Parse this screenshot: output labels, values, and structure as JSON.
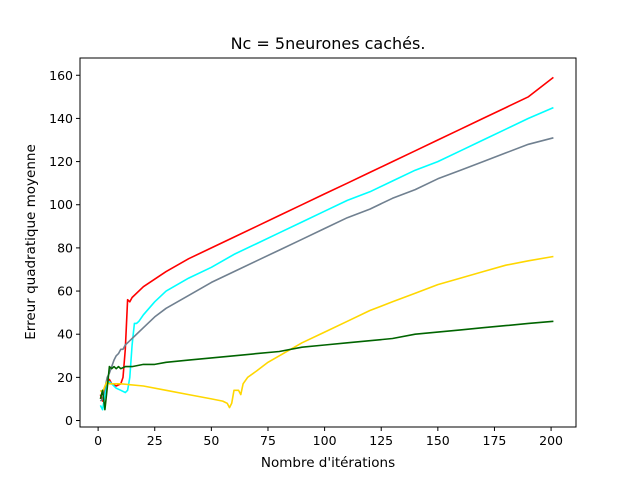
{
  "chart_data": {
    "type": "line",
    "title": "Nc = 5neurones cachés.",
    "xlabel": "Nombre d'itérations",
    "ylabel": "Erreur quadratique moyenne",
    "xlim": [
      -8,
      211
    ],
    "ylim": [
      -3,
      168
    ],
    "xticks": [
      0,
      25,
      50,
      75,
      100,
      125,
      150,
      175,
      200
    ],
    "yticks": [
      0,
      20,
      40,
      60,
      80,
      100,
      120,
      140,
      160
    ],
    "grid": false,
    "series": [
      {
        "color": "#ff0000",
        "points": [
          [
            1,
            12
          ],
          [
            2,
            9
          ],
          [
            3,
            14
          ],
          [
            4,
            17
          ],
          [
            5,
            19
          ],
          [
            6,
            17
          ],
          [
            8,
            16
          ],
          [
            10,
            17
          ],
          [
            11,
            20
          ],
          [
            12,
            33
          ],
          [
            13,
            56
          ],
          [
            14,
            55
          ],
          [
            15,
            57
          ],
          [
            20,
            62
          ],
          [
            30,
            69
          ],
          [
            40,
            75
          ],
          [
            50,
            80
          ],
          [
            60,
            85
          ],
          [
            70,
            90
          ],
          [
            80,
            95
          ],
          [
            90,
            100
          ],
          [
            100,
            105
          ],
          [
            110,
            110
          ],
          [
            120,
            115
          ],
          [
            130,
            120
          ],
          [
            140,
            125
          ],
          [
            150,
            130
          ],
          [
            160,
            135
          ],
          [
            170,
            140
          ],
          [
            180,
            145
          ],
          [
            190,
            150
          ],
          [
            201,
            159
          ]
        ]
      },
      {
        "color": "#00ffff",
        "points": [
          [
            1,
            7
          ],
          [
            2,
            5
          ],
          [
            3,
            12
          ],
          [
            4,
            17
          ],
          [
            5,
            18
          ],
          [
            6,
            17
          ],
          [
            8,
            15
          ],
          [
            10,
            14
          ],
          [
            12,
            13
          ],
          [
            13,
            14
          ],
          [
            14,
            20
          ],
          [
            15,
            35
          ],
          [
            16,
            45
          ],
          [
            17,
            45
          ],
          [
            18,
            46
          ],
          [
            20,
            49
          ],
          [
            25,
            55
          ],
          [
            30,
            60
          ],
          [
            40,
            66
          ],
          [
            50,
            71
          ],
          [
            60,
            77
          ],
          [
            70,
            82
          ],
          [
            80,
            87
          ],
          [
            90,
            92
          ],
          [
            100,
            97
          ],
          [
            110,
            102
          ],
          [
            120,
            106
          ],
          [
            130,
            111
          ],
          [
            140,
            116
          ],
          [
            150,
            120
          ],
          [
            160,
            125
          ],
          [
            170,
            130
          ],
          [
            180,
            135
          ],
          [
            190,
            140
          ],
          [
            201,
            145
          ]
        ]
      },
      {
        "color": "#708090",
        "points": [
          [
            1,
            9
          ],
          [
            2,
            10
          ],
          [
            3,
            15
          ],
          [
            4,
            20
          ],
          [
            5,
            22
          ],
          [
            6,
            25
          ],
          [
            7,
            28
          ],
          [
            8,
            30
          ],
          [
            9,
            31
          ],
          [
            10,
            33
          ],
          [
            11,
            33
          ],
          [
            12,
            35
          ],
          [
            13,
            36
          ],
          [
            14,
            37
          ],
          [
            15,
            38
          ],
          [
            20,
            43
          ],
          [
            25,
            48
          ],
          [
            30,
            52
          ],
          [
            40,
            58
          ],
          [
            50,
            64
          ],
          [
            60,
            69
          ],
          [
            70,
            74
          ],
          [
            80,
            79
          ],
          [
            90,
            84
          ],
          [
            100,
            89
          ],
          [
            110,
            94
          ],
          [
            120,
            98
          ],
          [
            130,
            103
          ],
          [
            140,
            107
          ],
          [
            150,
            112
          ],
          [
            160,
            116
          ],
          [
            170,
            120
          ],
          [
            180,
            124
          ],
          [
            190,
            128
          ],
          [
            201,
            131
          ]
        ]
      },
      {
        "color": "#ffd700",
        "points": [
          [
            1,
            14
          ],
          [
            2,
            13
          ],
          [
            3,
            16
          ],
          [
            4,
            18
          ],
          [
            5,
            17
          ],
          [
            10,
            17
          ],
          [
            20,
            16
          ],
          [
            30,
            14
          ],
          [
            40,
            12
          ],
          [
            50,
            10
          ],
          [
            55,
            9
          ],
          [
            57,
            8
          ],
          [
            58,
            6
          ],
          [
            59,
            8
          ],
          [
            60,
            14
          ],
          [
            62,
            14
          ],
          [
            63,
            12
          ],
          [
            64,
            17
          ],
          [
            66,
            20
          ],
          [
            70,
            23
          ],
          [
            75,
            27
          ],
          [
            80,
            30
          ],
          [
            90,
            36
          ],
          [
            100,
            41
          ],
          [
            110,
            46
          ],
          [
            120,
            51
          ],
          [
            130,
            55
          ],
          [
            140,
            59
          ],
          [
            150,
            63
          ],
          [
            160,
            66
          ],
          [
            170,
            69
          ],
          [
            180,
            72
          ],
          [
            190,
            74
          ],
          [
            201,
            76
          ]
        ]
      },
      {
        "color": "#006400",
        "points": [
          [
            1,
            10
          ],
          [
            2,
            14
          ],
          [
            3,
            5
          ],
          [
            4,
            15
          ],
          [
            5,
            25
          ],
          [
            6,
            24
          ],
          [
            7,
            25
          ],
          [
            8,
            24
          ],
          [
            9,
            25
          ],
          [
            10,
            24
          ],
          [
            12,
            25
          ],
          [
            15,
            25
          ],
          [
            20,
            26
          ],
          [
            25,
            26
          ],
          [
            30,
            27
          ],
          [
            40,
            28
          ],
          [
            50,
            29
          ],
          [
            60,
            30
          ],
          [
            70,
            31
          ],
          [
            80,
            32
          ],
          [
            90,
            34
          ],
          [
            100,
            35
          ],
          [
            110,
            36
          ],
          [
            120,
            37
          ],
          [
            130,
            38
          ],
          [
            140,
            40
          ],
          [
            150,
            41
          ],
          [
            160,
            42
          ],
          [
            170,
            43
          ],
          [
            180,
            44
          ],
          [
            190,
            45
          ],
          [
            201,
            46
          ]
        ]
      }
    ]
  }
}
